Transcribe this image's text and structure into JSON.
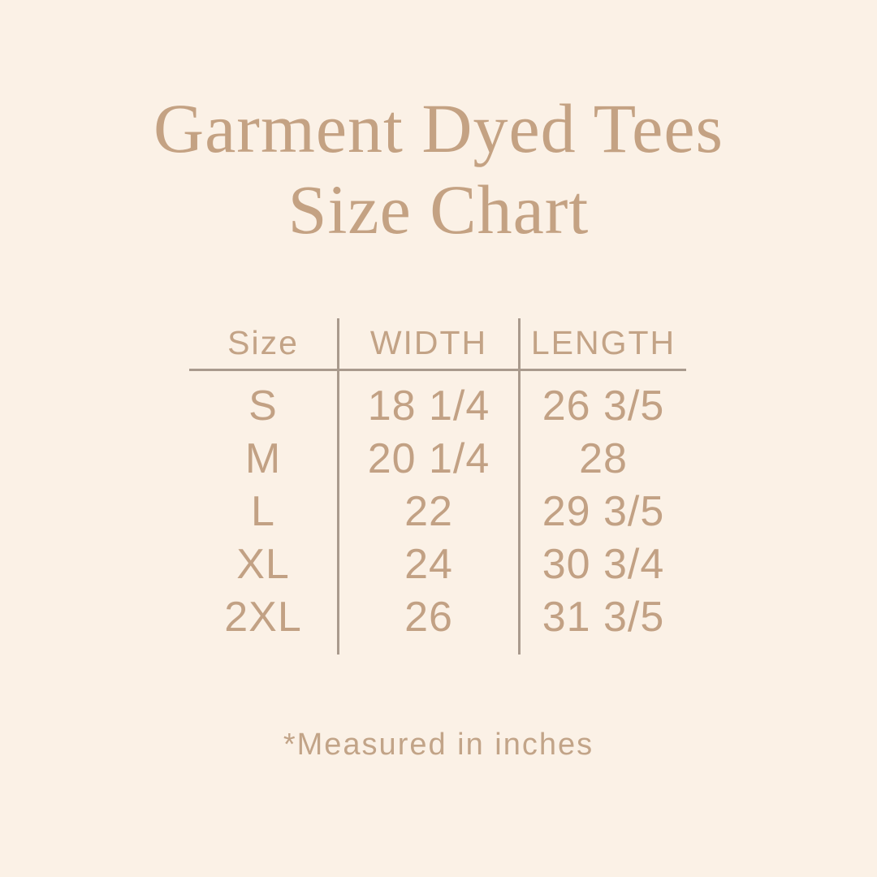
{
  "title": {
    "line1": "Garment Dyed Tees",
    "line2": "Size Chart"
  },
  "table": {
    "headers": [
      "Size",
      "WIDTH",
      "LENGTH"
    ],
    "rows": [
      {
        "size": "S",
        "width": "18 1/4",
        "length": "26 3/5"
      },
      {
        "size": "M",
        "width": "20 1/4",
        "length": "28"
      },
      {
        "size": "L",
        "width": "22",
        "length": "29 3/5"
      },
      {
        "size": "XL",
        "width": "24",
        "length": "30 3/4"
      },
      {
        "size": "2XL",
        "width": "26",
        "length": "31 3/5"
      }
    ]
  },
  "footnote": "*Measured in inches",
  "colors": {
    "background": "#fbf1e6",
    "title_text": "#c4a283",
    "table_text": "#c2a184",
    "divider_line": "#a99a8d"
  },
  "chart_data": {
    "type": "table",
    "title": "Garment Dyed Tees Size Chart",
    "columns": [
      "Size",
      "WIDTH",
      "LENGTH"
    ],
    "rows": [
      [
        "S",
        "18 1/4",
        "26 3/5"
      ],
      [
        "M",
        "20 1/4",
        "28"
      ],
      [
        "L",
        "22",
        "29 3/5"
      ],
      [
        "XL",
        "24",
        "30 3/4"
      ],
      [
        "2XL",
        "26",
        "31 3/5"
      ]
    ],
    "note": "*Measured in inches",
    "units": "inches"
  }
}
